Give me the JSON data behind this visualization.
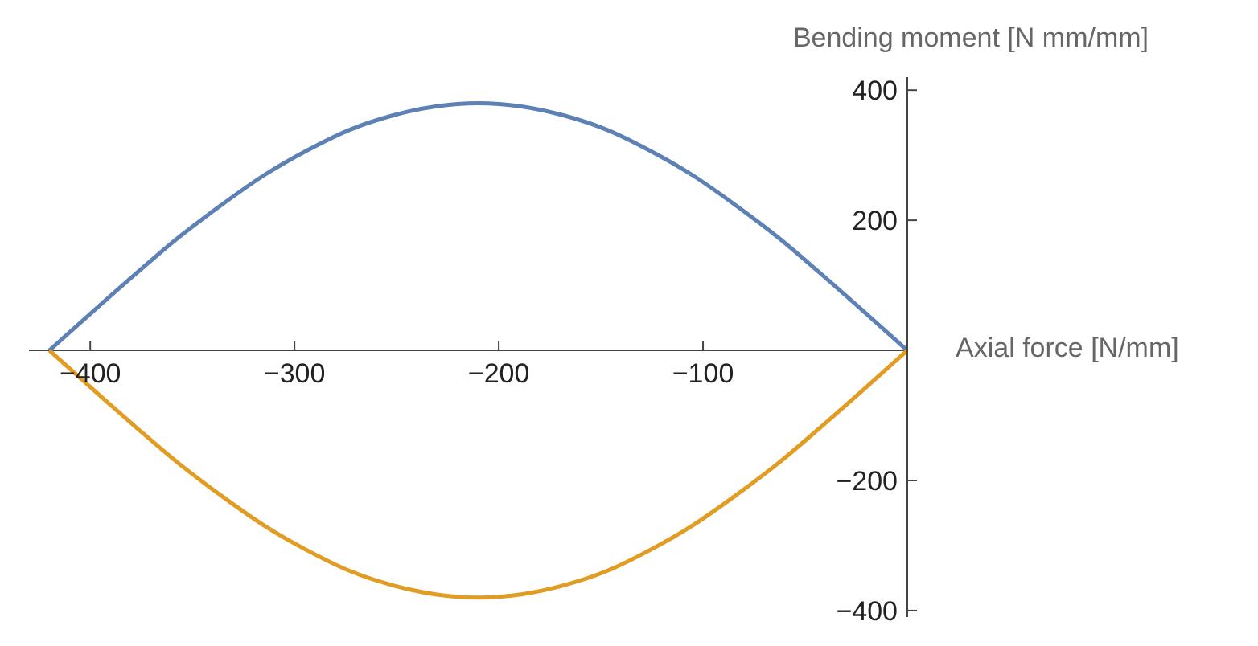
{
  "chart_data": {
    "type": "line",
    "xlabel": "Axial force [N/mm]",
    "ylabel": "Bending moment [N mm/mm]",
    "xlim": [
      -430,
      0
    ],
    "ylim": [
      -410,
      420
    ],
    "xticks": [
      {
        "value": -400,
        "label": "−400"
      },
      {
        "value": -300,
        "label": "−300"
      },
      {
        "value": -200,
        "label": "−200"
      },
      {
        "value": -100,
        "label": "−100"
      }
    ],
    "yticks": [
      {
        "value": -400,
        "label": "−400"
      },
      {
        "value": -200,
        "label": "−200"
      },
      200,
      400
    ],
    "grid": false,
    "legend": false,
    "marker": "none",
    "line_style": "solid",
    "series": [
      {
        "color": "#5e81b5",
        "x": [
          -420,
          -399,
          -378,
          -357,
          -336,
          -315,
          -294,
          -273,
          -252,
          -231,
          -210,
          -189,
          -168,
          -147,
          -126,
          -105,
          -84,
          -63,
          -42,
          -21,
          0
        ],
        "values": [
          0,
          59,
          117,
          173,
          223,
          269,
          307,
          339,
          361,
          375,
          380,
          375,
          361,
          339,
          307,
          269,
          223,
          173,
          117,
          59,
          0
        ]
      },
      {
        "color": "#e19c24",
        "x": [
          -420,
          -399,
          -378,
          -357,
          -336,
          -315,
          -294,
          -273,
          -252,
          -231,
          -210,
          -189,
          -168,
          -147,
          -126,
          -105,
          -84,
          -63,
          -42,
          -21,
          0
        ],
        "values": [
          0,
          -59,
          -117,
          -173,
          -223,
          -269,
          -307,
          -339,
          -361,
          -375,
          -380,
          -375,
          -361,
          -339,
          -307,
          -269,
          -223,
          -173,
          -117,
          -59,
          0
        ]
      }
    ]
  }
}
